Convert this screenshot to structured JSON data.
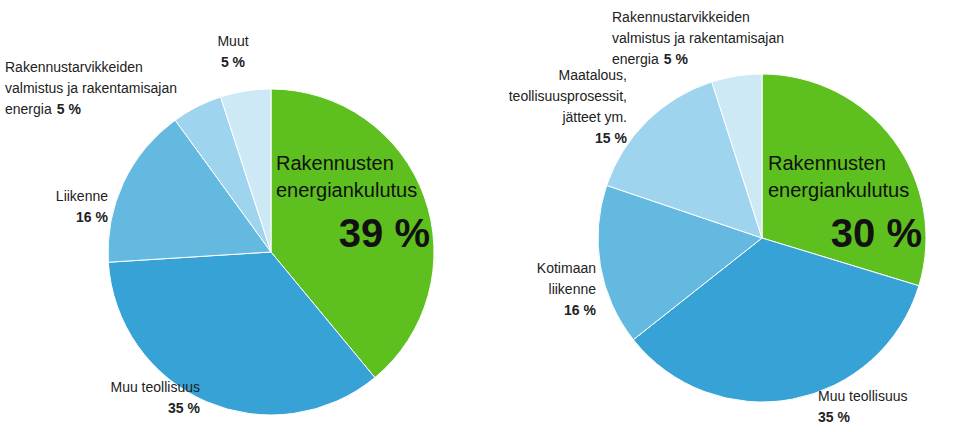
{
  "chart_data": [
    {
      "type": "pie",
      "categories": [
        "Rakennusten energiankulutus",
        "Muu teollisuus",
        "Liikenne",
        "Rakennustarvikkeiden valmistus ja rakentamisajan energia",
        "Muut"
      ],
      "values": [
        39,
        35,
        16,
        5,
        5
      ],
      "value_labels": [
        "39 %",
        "35 %",
        "16 %",
        "5 %",
        "5 %"
      ],
      "colors": [
        "#5ec01e",
        "#36a2d6",
        "#64b9e1",
        "#9fd4ee",
        "#cde9f6"
      ],
      "data_labels": true
    },
    {
      "type": "pie",
      "categories": [
        "Rakennusten energiankulutus",
        "Muu teollisuus",
        "Kotimaan liikenne",
        "Maatalous, teollisuusprosessit, jätteet ym.",
        "Rakennustarvikkeiden valmistus ja rakentamisajan energia"
      ],
      "values": [
        30,
        35,
        16,
        15,
        5
      ],
      "value_labels": [
        "30 %",
        "35 %",
        "16 %",
        "15 %",
        "5 %"
      ],
      "colors": [
        "#5ec01e",
        "#36a2d6",
        "#64b9e1",
        "#9fd4ee",
        "#cde9f6"
      ],
      "data_labels": true
    }
  ]
}
